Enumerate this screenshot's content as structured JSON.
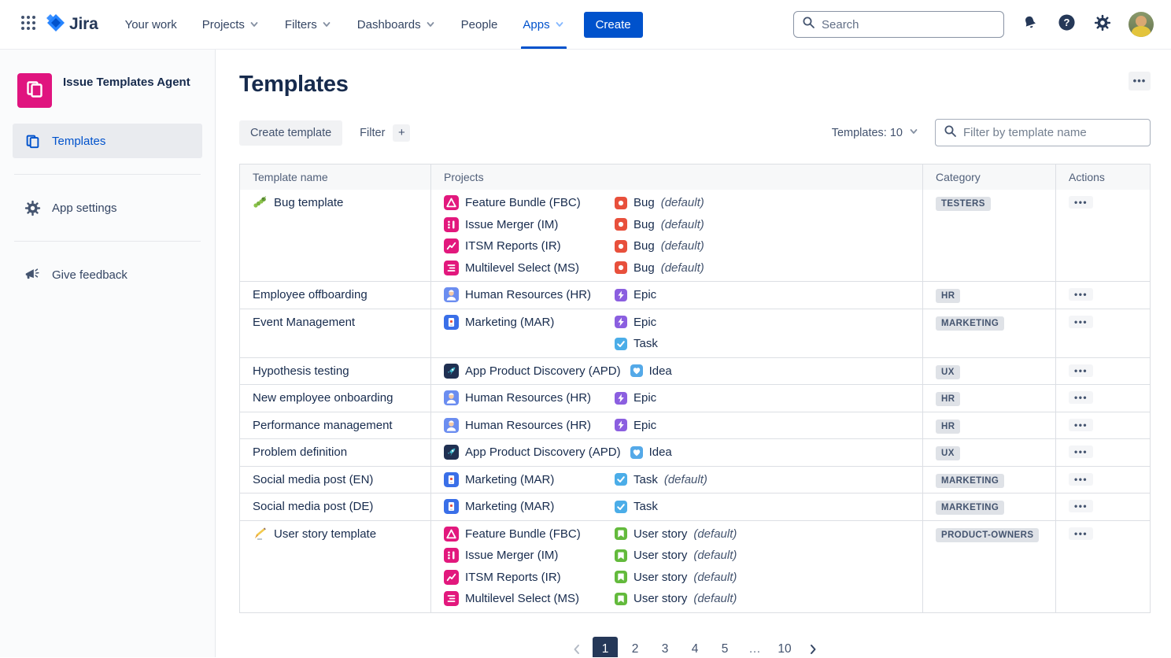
{
  "colors": {
    "accent": "#0052CC",
    "nav_active": "#0052CC",
    "app_pink": "#E0147F",
    "bug": "#E8503C",
    "epic": "#8B5FE0",
    "task": "#4BADE8",
    "idea": "#54A9E8",
    "user_story": "#63BA3C",
    "project_pink": "#E2187D",
    "project_hr_blue": "#6B8DF0",
    "project_mar_blue": "#3A6FE8",
    "project_apd_navy": "#203052",
    "badge_bg": "#DFE2E7",
    "pagination_active": "#253858",
    "icon_dark": "#253858"
  },
  "topnav": {
    "logo_text": "Jira",
    "items": [
      {
        "label": "Your work",
        "chevron": false,
        "active": false
      },
      {
        "label": "Projects",
        "chevron": true,
        "active": false
      },
      {
        "label": "Filters",
        "chevron": true,
        "active": false
      },
      {
        "label": "Dashboards",
        "chevron": true,
        "active": false
      },
      {
        "label": "People",
        "chevron": false,
        "active": false
      },
      {
        "label": "Apps",
        "chevron": true,
        "active": true
      }
    ],
    "create_label": "Create",
    "search_placeholder": "Search",
    "icons": [
      "app-switcher-grid-icon",
      "jira-logo-icon",
      "bell-icon",
      "help-icon",
      "gear-icon",
      "avatar"
    ]
  },
  "sidebar": {
    "app_title": "Issue Templates Agent",
    "app_icon": "issue-templates-app-icon",
    "items": [
      {
        "label": "Templates",
        "icon": "templates-doc-icon",
        "active": true,
        "group": 0
      },
      {
        "label": "App settings",
        "icon": "gear-icon",
        "active": false,
        "group": 1
      },
      {
        "label": "Give feedback",
        "icon": "megaphone-icon",
        "active": false,
        "group": 2
      }
    ]
  },
  "main": {
    "title": "Templates",
    "more_label": "•••",
    "toolbar": {
      "create_label": "Create template",
      "filter_label": "Filter",
      "plus_label": "+",
      "count_label": "Templates: 10",
      "filter_placeholder": "Filter by template name"
    },
    "table": {
      "columns": [
        "Template name",
        "Projects",
        "Category",
        "Actions"
      ],
      "actions_label": "•••",
      "rows": [
        {
          "name": "Bug template",
          "name_icon": "caterpillar-emoji-icon",
          "projects": [
            {
              "icon": "feature-bundle-project-icon",
              "label": "Feature Bundle (FBC)"
            },
            {
              "icon": "issue-merger-project-icon",
              "label": "Issue Merger (IM)"
            },
            {
              "icon": "itsm-reports-project-icon",
              "label": "ITSM Reports (IR)"
            },
            {
              "icon": "multilevel-select-project-icon",
              "label": "Multilevel Select (MS)"
            }
          ],
          "issue_types": [
            {
              "icon": "bug-issue-icon",
              "label": "Bug",
              "suffix": "(default)"
            },
            {
              "icon": "bug-issue-icon",
              "label": "Bug",
              "suffix": "(default)"
            },
            {
              "icon": "bug-issue-icon",
              "label": "Bug",
              "suffix": "(default)"
            },
            {
              "icon": "bug-issue-icon",
              "label": "Bug",
              "suffix": "(default)"
            }
          ],
          "category": "TESTERS"
        },
        {
          "name": "Employee offboarding",
          "projects": [
            {
              "icon": "human-resources-project-icon",
              "label": "Human Resources (HR)"
            }
          ],
          "issue_types": [
            {
              "icon": "epic-issue-icon",
              "label": "Epic",
              "suffix": ""
            }
          ],
          "category": "HR"
        },
        {
          "name": "Event Management",
          "projects": [
            {
              "icon": "marketing-project-icon",
              "label": "Marketing (MAR)"
            }
          ],
          "issue_types": [
            {
              "icon": "epic-issue-icon",
              "label": "Epic",
              "suffix": ""
            },
            {
              "icon": "task-issue-icon",
              "label": "Task",
              "suffix": ""
            }
          ],
          "category": "MARKETING"
        },
        {
          "name": "Hypothesis testing",
          "projects": [
            {
              "icon": "app-product-discovery-project-icon",
              "label": "App Product Discovery (APD)"
            }
          ],
          "issue_types": [
            {
              "icon": "idea-issue-icon",
              "label": "Idea",
              "suffix": ""
            }
          ],
          "category": "UX"
        },
        {
          "name": "New employee onboarding",
          "projects": [
            {
              "icon": "human-resources-project-icon",
              "label": "Human Resources (HR)"
            }
          ],
          "issue_types": [
            {
              "icon": "epic-issue-icon",
              "label": "Epic",
              "suffix": ""
            }
          ],
          "category": "HR"
        },
        {
          "name": "Performance management",
          "projects": [
            {
              "icon": "human-resources-project-icon",
              "label": "Human Resources (HR)"
            }
          ],
          "issue_types": [
            {
              "icon": "epic-issue-icon",
              "label": "Epic",
              "suffix": ""
            }
          ],
          "category": "HR"
        },
        {
          "name": "Problem definition",
          "projects": [
            {
              "icon": "app-product-discovery-project-icon",
              "label": "App Product Discovery (APD)"
            }
          ],
          "issue_types": [
            {
              "icon": "idea-issue-icon",
              "label": "Idea",
              "suffix": ""
            }
          ],
          "category": "UX"
        },
        {
          "name": "Social media post (EN)",
          "projects": [
            {
              "icon": "marketing-project-icon",
              "label": "Marketing (MAR)"
            }
          ],
          "issue_types": [
            {
              "icon": "task-issue-icon",
              "label": "Task",
              "suffix": "(default)"
            }
          ],
          "category": "MARKETING"
        },
        {
          "name": "Social media post (DE)",
          "projects": [
            {
              "icon": "marketing-project-icon",
              "label": "Marketing (MAR)"
            }
          ],
          "issue_types": [
            {
              "icon": "task-issue-icon",
              "label": "Task",
              "suffix": ""
            }
          ],
          "category": "MARKETING"
        },
        {
          "name": "User story template",
          "name_icon": "writing-hand-emoji-icon",
          "projects": [
            {
              "icon": "feature-bundle-project-icon",
              "label": "Feature Bundle (FBC)"
            },
            {
              "icon": "issue-merger-project-icon",
              "label": "Issue Merger (IM)"
            },
            {
              "icon": "itsm-reports-project-icon",
              "label": "ITSM Reports (IR)"
            },
            {
              "icon": "multilevel-select-project-icon",
              "label": "Multilevel Select (MS)"
            }
          ],
          "issue_types": [
            {
              "icon": "user-story-issue-icon",
              "label": "User story",
              "suffix": "(default)"
            },
            {
              "icon": "user-story-issue-icon",
              "label": "User story",
              "suffix": "(default)"
            },
            {
              "icon": "user-story-issue-icon",
              "label": "User story",
              "suffix": "(default)"
            },
            {
              "icon": "user-story-issue-icon",
              "label": "User story",
              "suffix": "(default)"
            }
          ],
          "category": "PRODUCT-OWNERS"
        }
      ]
    },
    "pagination": {
      "pages": [
        "1",
        "2",
        "3",
        "4",
        "5",
        "…",
        "10"
      ],
      "current": "1"
    }
  }
}
